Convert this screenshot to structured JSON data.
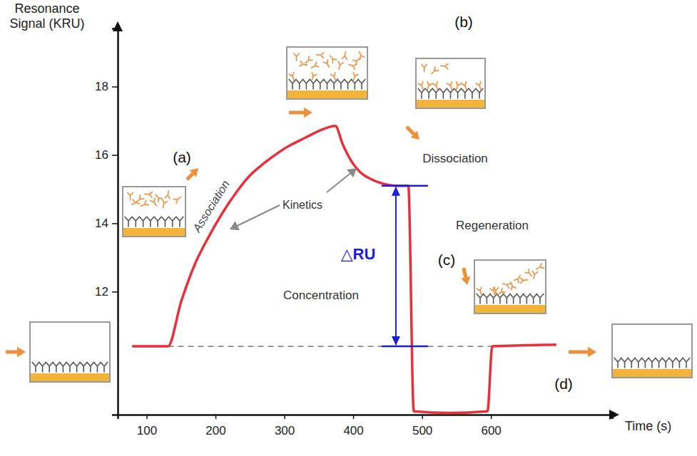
{
  "chart_data": {
    "type": "line",
    "x_label": "Time (s)",
    "y_label": "Resonance Signal (KRU)",
    "x": [
      79,
      131,
      150,
      170,
      190,
      210,
      230,
      250,
      270,
      290,
      310,
      330,
      350,
      374,
      385,
      395,
      410,
      425,
      445,
      462,
      480,
      488,
      540,
      595,
      602,
      695
    ],
    "values": [
      10.4,
      10.4,
      11.7,
      12.8,
      13.6,
      14.3,
      14.9,
      15.4,
      15.75,
      16.05,
      16.3,
      16.5,
      16.7,
      16.85,
      16.3,
      15.9,
      15.5,
      15.3,
      15.15,
      15.1,
      15.1,
      8.5,
      8.45,
      8.5,
      10.4,
      10.45
    ],
    "color": "#e8303a",
    "xlim": [
      58,
      776
    ],
    "ylim": [
      8.4,
      19.7
    ],
    "xticks": [
      100,
      200,
      300,
      400,
      500,
      600
    ],
    "yticks": [
      12,
      14,
      16,
      18
    ],
    "grid": false,
    "annotations": [
      "(a)",
      "(b)",
      "(c)",
      "(d)",
      "Association",
      "Kinetics",
      "Dissociation",
      "Regeneration",
      "Concentration",
      "△RU"
    ]
  }
}
